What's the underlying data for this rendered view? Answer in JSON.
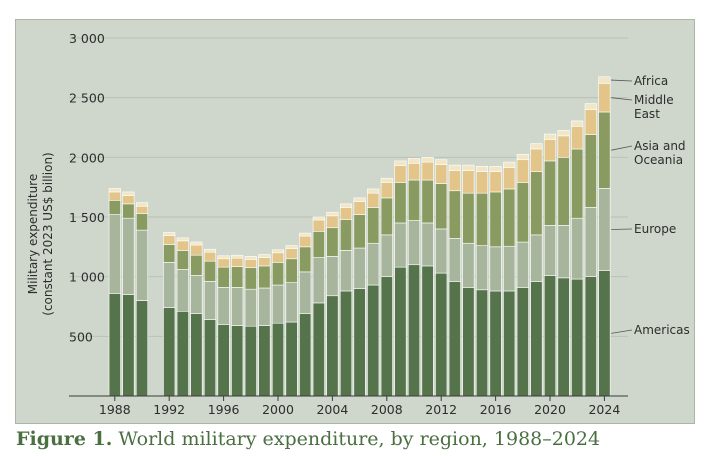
{
  "caption": {
    "figure_number": "Figure 1.",
    "title": "World military expenditure, by region, 1988–2024"
  },
  "colors": {
    "background": "#cfd6cc",
    "grid": "#b9c3b5",
    "segment_separator": "#ffffff",
    "Americas": "#55744b",
    "Europe": "#a7b59c",
    "Asia and Oceania": "#8a9b62",
    "Middle East": "#e3c589",
    "Africa": "#f1e6c6"
  },
  "chart_data": {
    "type": "bar",
    "stacked": true,
    "title": "",
    "xlabel": "",
    "ylabel": [
      "Military expenditure",
      "(constant 2023 US$ billion)"
    ],
    "ylim": [
      0,
      3000
    ],
    "yticks": [
      500,
      1000,
      1500,
      2000,
      2500,
      3000
    ],
    "ytick_labels": [
      "500",
      "1 000",
      "1 500",
      "2 000",
      "2 500",
      "3 000"
    ],
    "xticks": [
      "1988",
      "1992",
      "1996",
      "2000",
      "2004",
      "2008",
      "2012",
      "2016",
      "2020",
      "2024"
    ],
    "grid": true,
    "legend": "right, labels beside the final bar",
    "categories": [
      "1988",
      "1989",
      "1990",
      "1991",
      "1992",
      "1993",
      "1994",
      "1995",
      "1996",
      "1997",
      "1998",
      "1999",
      "2000",
      "2001",
      "2002",
      "2003",
      "2004",
      "2005",
      "2006",
      "2007",
      "2008",
      "2009",
      "2010",
      "2011",
      "2012",
      "2013",
      "2014",
      "2015",
      "2016",
      "2017",
      "2018",
      "2019",
      "2020",
      "2021",
      "2022",
      "2023",
      "2024"
    ],
    "series": [
      {
        "name": "Americas",
        "values": [
          860,
          850,
          800,
          null,
          740,
          710,
          690,
          640,
          600,
          590,
          585,
          590,
          610,
          620,
          690,
          780,
          840,
          880,
          900,
          930,
          1000,
          1080,
          1100,
          1090,
          1030,
          960,
          910,
          890,
          880,
          880,
          910,
          960,
          1010,
          990,
          980,
          1000,
          1050
        ]
      },
      {
        "name": "Europe",
        "values": [
          660,
          640,
          590,
          null,
          380,
          350,
          320,
          320,
          310,
          320,
          310,
          315,
          320,
          330,
          350,
          380,
          330,
          340,
          340,
          350,
          350,
          370,
          370,
          360,
          370,
          360,
          370,
          370,
          370,
          375,
          380,
          390,
          420,
          440,
          510,
          580,
          690
        ]
      },
      {
        "name": "Asia and Oceania",
        "values": [
          120,
          120,
          140,
          null,
          150,
          160,
          170,
          170,
          170,
          175,
          180,
          185,
          190,
          200,
          210,
          220,
          240,
          260,
          280,
          300,
          310,
          340,
          340,
          360,
          380,
          400,
          420,
          440,
          460,
          480,
          500,
          530,
          540,
          570,
          580,
          610,
          640
        ]
      },
      {
        "name": "Middle East",
        "values": [
          70,
          70,
          60,
          null,
          75,
          80,
          85,
          75,
          70,
          70,
          70,
          70,
          80,
          85,
          90,
          95,
          100,
          100,
          110,
          120,
          130,
          140,
          140,
          150,
          160,
          170,
          190,
          180,
          170,
          180,
          190,
          190,
          180,
          180,
          190,
          210,
          240
        ]
      },
      {
        "name": "Africa",
        "values": [
          30,
          30,
          30,
          null,
          25,
          25,
          25,
          25,
          25,
          25,
          25,
          25,
          25,
          25,
          25,
          25,
          30,
          30,
          30,
          35,
          35,
          40,
          40,
          40,
          40,
          45,
          45,
          45,
          45,
          45,
          45,
          45,
          45,
          45,
          45,
          50,
          55
        ]
      }
    ]
  }
}
